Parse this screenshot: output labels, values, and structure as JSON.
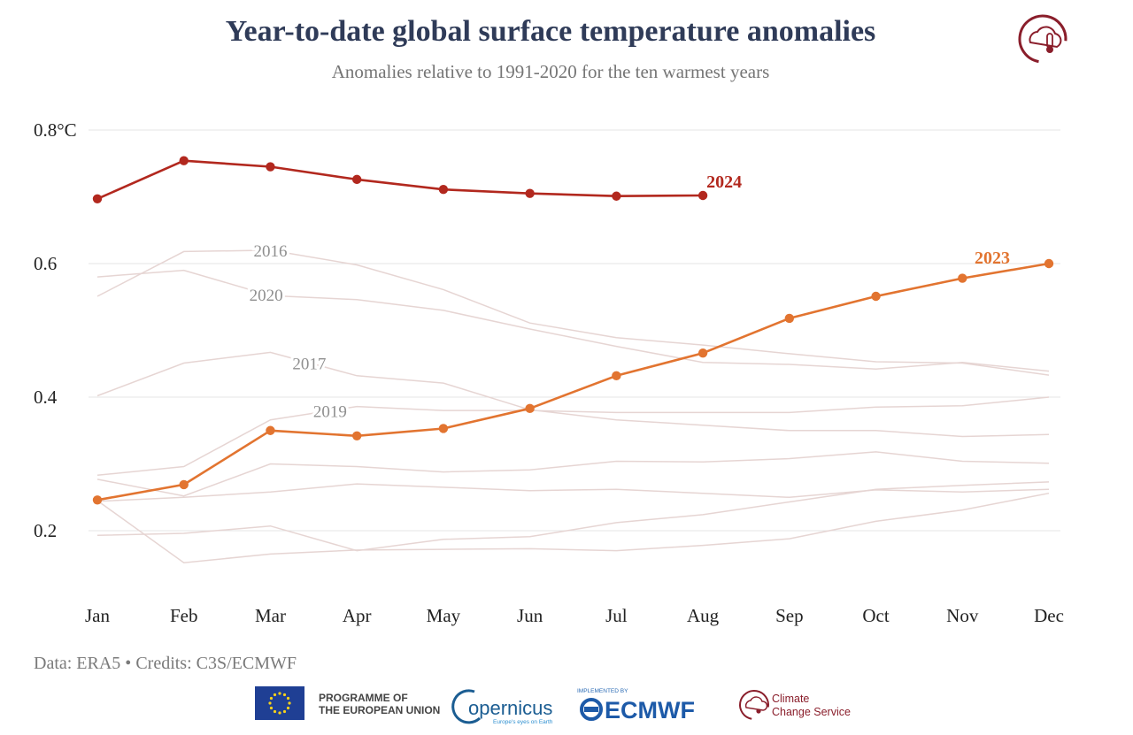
{
  "title": "Year-to-date global surface temperature anomalies",
  "subtitle": "Anomalies relative to 1991-2020 for the ten warmest years",
  "credits": "Data: ERA5 • Credits: C3S/ECMWF",
  "logos": {
    "eu_line1": "PROGRAMME OF",
    "eu_line2": "THE EUROPEAN UNION",
    "copernicus_word": "opernicus",
    "copernicus_tagline": "Europe's eyes on Earth",
    "ecmwf_small": "IMPLEMENTED BY",
    "ecmwf_word": "ECMWF",
    "c3s_line1": "Climate",
    "c3s_line2": "Change Service"
  },
  "colors": {
    "y2024": "#b2281e",
    "y2023": "#e27430",
    "other": "#e6d5d3",
    "grid": "#e6e6e6",
    "title": "#2f3b58",
    "subtitle": "#757575",
    "axis_text": "#222222",
    "label_gray": "#8f8f8f"
  },
  "chart_data": {
    "type": "line",
    "title": "Year-to-date global surface temperature anomalies",
    "subtitle": "Anomalies relative to 1991-2020 for the ten warmest years",
    "categories": [
      "Jan",
      "Feb",
      "Mar",
      "Apr",
      "May",
      "Jun",
      "Jul",
      "Aug",
      "Sep",
      "Oct",
      "Nov",
      "Dec"
    ],
    "y_ticks": [
      {
        "value": 0.2,
        "label": "0.2"
      },
      {
        "value": 0.4,
        "label": "0.4"
      },
      {
        "value": 0.6,
        "label": "0.6"
      },
      {
        "value": 0.8,
        "label": "0.8°C"
      }
    ],
    "ylim": [
      0.2,
      0.8
    ],
    "grid": true,
    "highlighted_series": [
      {
        "name": "2024",
        "color": "#b2281e",
        "values": [
          0.697,
          0.754,
          0.745,
          0.726,
          0.711,
          0.705,
          0.701,
          0.702
        ]
      },
      {
        "name": "2023",
        "color": "#e27430",
        "values": [
          0.246,
          0.269,
          0.35,
          0.342,
          0.353,
          0.383,
          0.432,
          0.466,
          0.518,
          0.551,
          0.578,
          0.6
        ]
      }
    ],
    "other_series": [
      {
        "name": "2016",
        "labeled": true,
        "values": [
          0.551,
          0.618,
          0.62,
          0.598,
          0.561,
          0.511,
          0.489,
          0.478,
          0.465,
          0.453,
          0.451,
          0.433
        ]
      },
      {
        "name": "2020",
        "labeled": true,
        "values": [
          0.58,
          0.59,
          0.552,
          0.546,
          0.53,
          0.502,
          0.476,
          0.452,
          0.449,
          0.442,
          0.452,
          0.439
        ]
      },
      {
        "name": "2017",
        "labeled": true,
        "values": [
          0.402,
          0.451,
          0.467,
          0.432,
          0.421,
          0.381,
          0.366,
          0.358,
          0.35,
          0.35,
          0.341,
          0.344
        ]
      },
      {
        "name": "2019",
        "labeled": true,
        "values": [
          0.283,
          0.296,
          0.366,
          0.386,
          0.38,
          0.38,
          0.377,
          0.377,
          0.377,
          0.385,
          0.387,
          0.4
        ]
      },
      {
        "name": "",
        "labeled": false,
        "values": [
          0.277,
          0.252,
          0.3,
          0.296,
          0.288,
          0.291,
          0.304,
          0.303,
          0.308,
          0.318,
          0.304,
          0.301
        ]
      },
      {
        "name": "",
        "labeled": false,
        "values": [
          0.244,
          0.25,
          0.258,
          0.27,
          0.265,
          0.26,
          0.262,
          0.256,
          0.25,
          0.261,
          0.258,
          0.262
        ]
      },
      {
        "name": "",
        "labeled": false,
        "values": [
          0.193,
          0.196,
          0.207,
          0.17,
          0.187,
          0.191,
          0.212,
          0.224,
          0.243,
          0.262,
          0.268,
          0.273
        ]
      },
      {
        "name": "",
        "labeled": false,
        "values": [
          0.245,
          0.152,
          0.165,
          0.171,
          0.172,
          0.173,
          0.17,
          0.178,
          0.188,
          0.214,
          0.231,
          0.256
        ]
      }
    ]
  }
}
